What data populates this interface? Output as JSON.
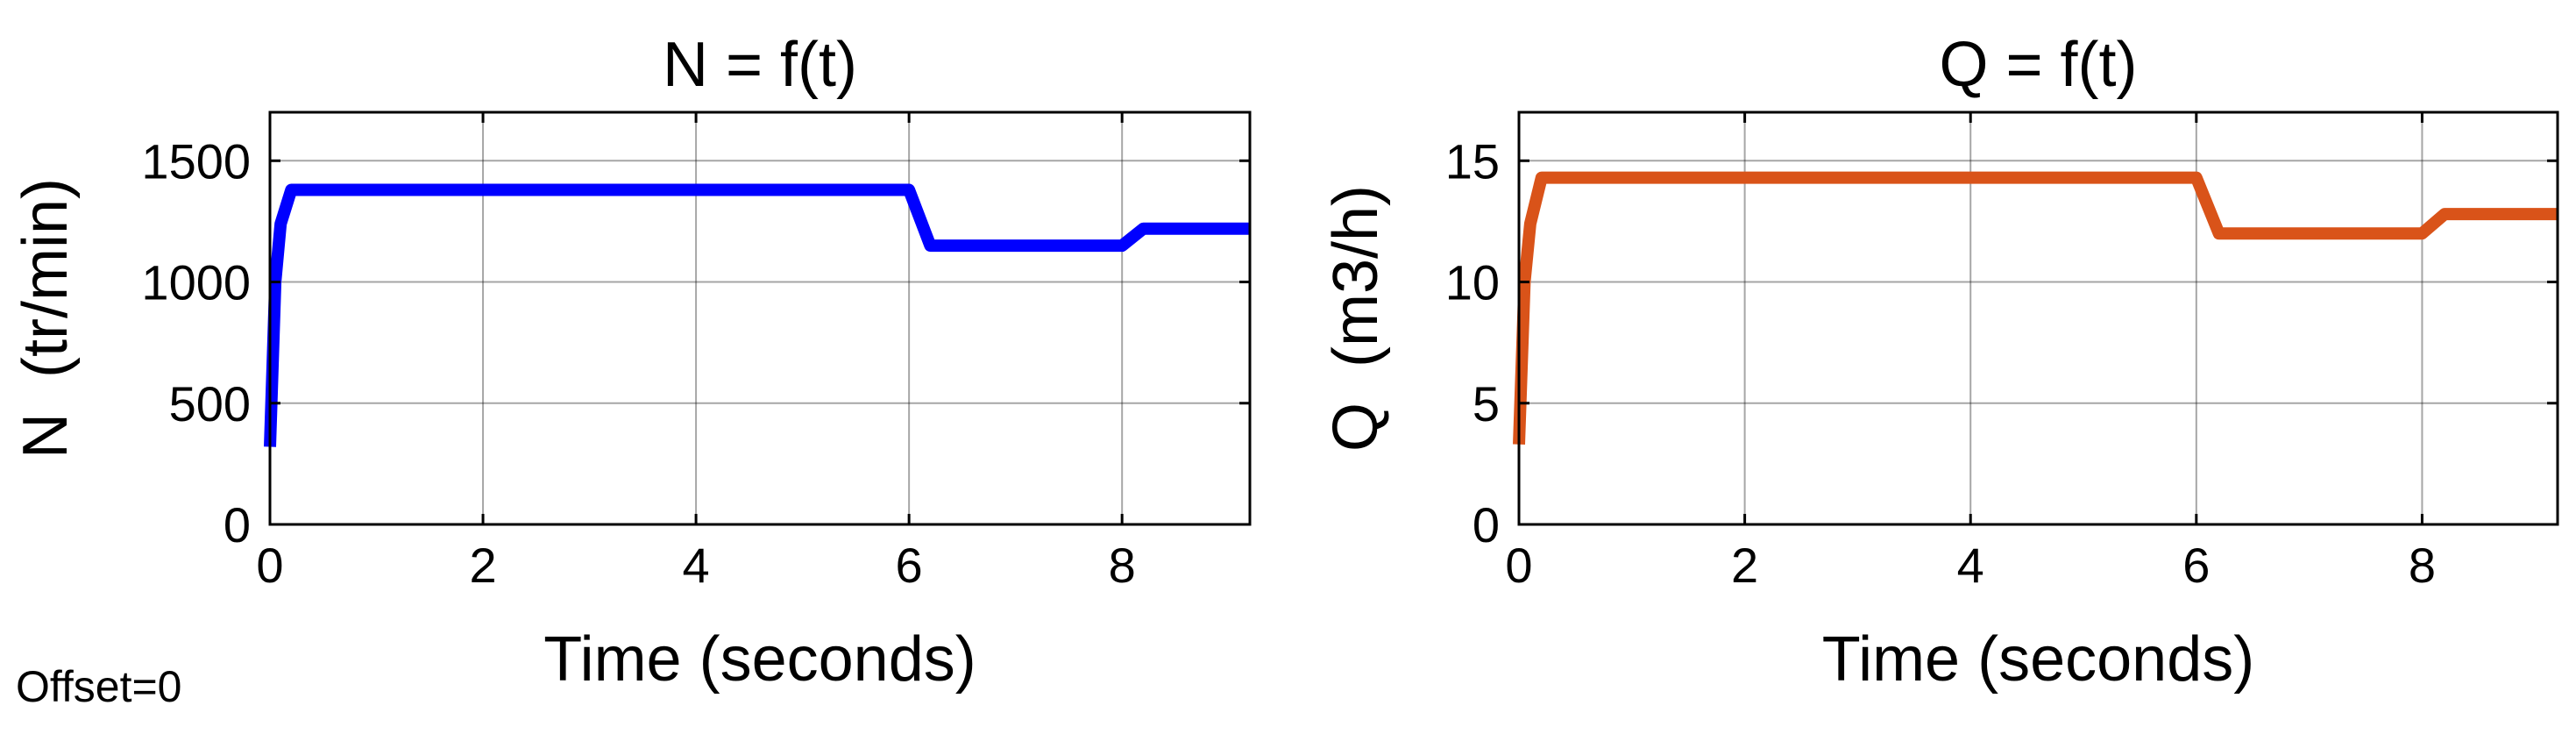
{
  "footnote": "Offset=0",
  "chart_data": [
    {
      "type": "line",
      "title": "N = f(t)",
      "xlabel": "Time (seconds)",
      "ylabel": "N  (tr/min)",
      "xlim": [
        0,
        9.2
      ],
      "ylim": [
        0,
        1700
      ],
      "xticks": [
        0,
        2,
        4,
        6,
        8
      ],
      "yticks": [
        0,
        500,
        1000,
        1500
      ],
      "xtick_labels": [
        "0",
        "2",
        "4",
        "6",
        "8"
      ],
      "ytick_labels": [
        "0",
        "500",
        "1000",
        "1500"
      ],
      "grid": true,
      "color": "#0000ff",
      "series": [
        {
          "x": [
            0,
            0.05,
            0.1,
            0.2,
            6.0,
            6.2,
            8.0,
            8.2,
            9.2
          ],
          "y": [
            320,
            1000,
            1240,
            1380,
            1380,
            1150,
            1150,
            1220,
            1220
          ]
        }
      ]
    },
    {
      "type": "line",
      "title": "Q = f(t)",
      "xlabel": "Time (seconds)",
      "ylabel": "Q  (m3/h)",
      "xlim": [
        0,
        9.2
      ],
      "ylim": [
        0,
        17
      ],
      "xticks": [
        0,
        2,
        4,
        6,
        8
      ],
      "yticks": [
        0,
        5,
        10,
        15
      ],
      "xtick_labels": [
        "0",
        "2",
        "4",
        "6",
        "8"
      ],
      "ytick_labels": [
        "0",
        "5",
        "10",
        "15"
      ],
      "grid": true,
      "color": "#d95319",
      "series": [
        {
          "x": [
            0,
            0.05,
            0.1,
            0.2,
            6.0,
            6.2,
            8.0,
            8.2,
            9.2
          ],
          "y": [
            3.3,
            10.0,
            12.4,
            14.3,
            14.3,
            12.0,
            12.0,
            12.8,
            12.8
          ]
        }
      ]
    }
  ]
}
